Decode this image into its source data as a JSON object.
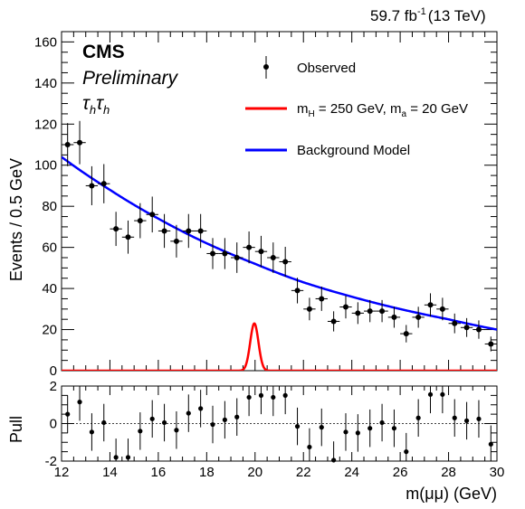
{
  "header": {
    "lumi": "59.7 fb",
    "lumi_exp": "-1",
    "energy": "(13 TeV)",
    "experiment": "CMS",
    "status": "Preliminary",
    "channel_main": "τ",
    "channel_sub": "h"
  },
  "legend": {
    "observed": "Observed",
    "signal_a": "m",
    "signal_a_sub": "H",
    "signal_b": " = 250 GeV, m",
    "signal_b_sub": "a",
    "signal_c": " = 20 GeV",
    "background": "Background Model"
  },
  "colors": {
    "signal": "#ff0000",
    "background": "#0000ff",
    "data": "#000000"
  },
  "chart_data": [
    {
      "type": "scatter",
      "panel": "main",
      "ylabel": "Events / 0.5 GeV",
      "xlim": [
        12,
        30
      ],
      "ylim": [
        0,
        165
      ],
      "x_ticks": [
        12,
        14,
        16,
        18,
        20,
        22,
        24,
        26,
        28,
        30
      ],
      "y_ticks": [
        0,
        20,
        40,
        60,
        80,
        100,
        120,
        140,
        160
      ],
      "series": [
        {
          "name": "Observed",
          "kind": "points",
          "x": [
            12.25,
            12.75,
            13.25,
            13.75,
            14.25,
            14.75,
            15.25,
            15.75,
            16.25,
            16.75,
            17.25,
            17.75,
            18.25,
            18.75,
            19.25,
            19.75,
            20.25,
            20.75,
            21.25,
            21.75,
            22.25,
            22.75,
            23.25,
            23.75,
            24.25,
            24.75,
            25.25,
            25.75,
            26.25,
            26.75,
            27.25,
            27.75,
            28.25,
            28.75,
            29.25,
            29.75
          ],
          "y": [
            110,
            111,
            90,
            91,
            69,
            65,
            73,
            76,
            68,
            63,
            68,
            68,
            57,
            57,
            55,
            60,
            58,
            55,
            53,
            39,
            30,
            35,
            24,
            31,
            28,
            29,
            29,
            26,
            18,
            26,
            32,
            30,
            23,
            21,
            20,
            13
          ],
          "x_err": 0.25
        },
        {
          "name": "Background Model",
          "kind": "curve",
          "x": [
            12,
            14,
            16,
            18,
            20,
            22,
            24,
            26,
            28,
            30
          ],
          "y": [
            104,
            88,
            74,
            62,
            52,
            43,
            36,
            30,
            25,
            20
          ]
        },
        {
          "name": "m_H = 250 GeV, m_a = 20 GeV",
          "kind": "peak",
          "mean": 19.97,
          "sigma": 0.17,
          "amplitude": 23
        }
      ]
    },
    {
      "type": "scatter",
      "panel": "pull",
      "ylabel": "Pull",
      "xlabel": "m(μμ) (GeV)",
      "xlim": [
        12,
        30
      ],
      "ylim": [
        -2,
        2
      ],
      "x_ticks": [
        12,
        14,
        16,
        18,
        20,
        22,
        24,
        26,
        28,
        30
      ],
      "y_ticks": [
        -2,
        0,
        2
      ],
      "series": [
        {
          "name": "Pull",
          "x": [
            12.25,
            12.75,
            13.25,
            13.75,
            14.25,
            14.75,
            15.25,
            15.75,
            16.25,
            16.75,
            17.25,
            17.75,
            18.25,
            18.75,
            19.25,
            19.75,
            20.25,
            20.75,
            21.25,
            21.75,
            22.25,
            22.75,
            23.25,
            23.75,
            24.25,
            24.75,
            25.25,
            25.75,
            26.25,
            26.75,
            27.25,
            27.75,
            28.25,
            28.75,
            29.25,
            29.75
          ],
          "y": [
            0.5,
            1.15,
            -0.45,
            0.05,
            -1.8,
            -1.8,
            -0.4,
            0.25,
            0.05,
            -0.35,
            0.55,
            0.8,
            -0.05,
            0.2,
            0.35,
            1.4,
            1.5,
            1.4,
            1.5,
            -0.15,
            -1.25,
            -0.2,
            -1.95,
            -0.45,
            -0.5,
            -0.25,
            0.05,
            -0.25,
            -1.5,
            0.3,
            1.55,
            1.55,
            0.3,
            0.15,
            0.25,
            -1.1
          ]
        }
      ]
    }
  ]
}
